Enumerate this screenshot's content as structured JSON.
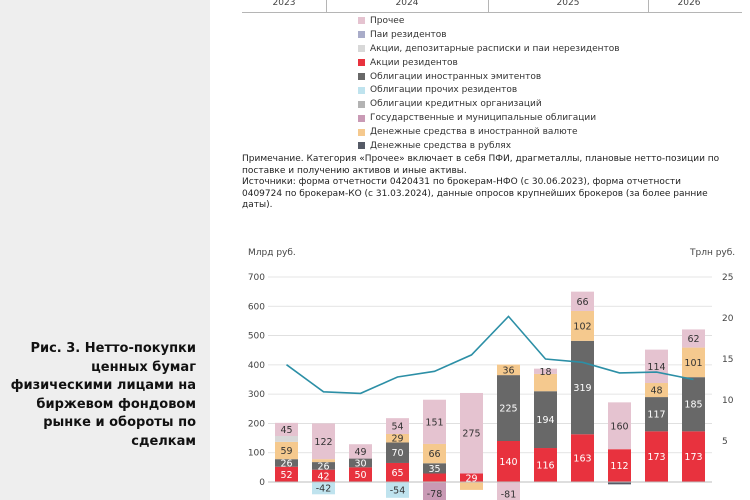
{
  "years": [
    "2023",
    "2024",
    "2025",
    "2026"
  ],
  "legend": [
    {
      "label": "Прочее",
      "color": "#e5c3d0"
    },
    {
      "label": "Паи резидентов",
      "color": "#a9acc9"
    },
    {
      "label": "Акции, депозитарные расписки и паи нерезидентов",
      "color": "#d8d8d8"
    },
    {
      "label": "Акции резидентов",
      "color": "#e8323e"
    },
    {
      "label": "Облигации иностранных эмитентов",
      "color": "#686868"
    },
    {
      "label": "Облигации прочих резидентов",
      "color": "#bfe3ee"
    },
    {
      "label": "Облигации кредитных организаций",
      "color": "#b3b3b3"
    },
    {
      "label": "Государственные и муниципальные облигации",
      "color": "#c99ab5"
    },
    {
      "label": "Денежные средства в иностранной валюте",
      "color": "#f5c98e"
    },
    {
      "label": "Денежные средства в рублях",
      "color": "#555a66"
    }
  ],
  "notes": {
    "note": "Примечание. Категория «Прочее» включает в себя ПФИ, драгметаллы, плановые нетто-позиции по поставке и получению активов и иные активы.",
    "sources": "Источники: форма отчетности 0420431 по брокерам-НФО (с 30.06.2023), форма отчетности 0409724 по брокерам-КО (с 31.03.2024), данные опросов крупнейших брокеров (за более ранние даты)."
  },
  "caption": "Рис. 3. Нетто-покупки ценных бумаг физическими лицами на биржевом фондовом рынке и обороты по сделкам",
  "chart_data": {
    "type": "bar",
    "left_unit": "Млрд руб.",
    "right_unit": "Трлн руб.",
    "left_ticks": [
      "700",
      "600",
      "500",
      "400",
      "300",
      "200",
      "100",
      "0"
    ],
    "right_ticks": [
      "25",
      "20",
      "15",
      "10",
      "5"
    ],
    "ylim_left": [
      -80,
      700
    ],
    "ylim_right": [
      -2.857,
      25
    ],
    "grid": true,
    "bars": [
      {
        "segments": [
          {
            "color": "#e8323e",
            "value": 52,
            "label": "52"
          },
          {
            "color": "#686868",
            "value": 26,
            "label": "26"
          },
          {
            "color": "#f5c98e",
            "value": 59,
            "label": "59"
          },
          {
            "color": "#d8d8d8",
            "value": 20,
            "label": ""
          },
          {
            "color": "#e5c3d0",
            "value": 45,
            "label": "45"
          }
        ]
      },
      {
        "segments": [
          {
            "color": "#e8323e",
            "value": 42,
            "label": "42"
          },
          {
            "color": "#686868",
            "value": 26,
            "label": "26"
          },
          {
            "color": "#f5c98e",
            "value": 10,
            "label": ""
          },
          {
            "color": "#e5c3d0",
            "value": 122,
            "label": "122"
          },
          {
            "color": "#bfe3ee",
            "value": -42,
            "label": "-42"
          }
        ]
      },
      {
        "segments": [
          {
            "color": "#e8323e",
            "value": 50,
            "label": "50"
          },
          {
            "color": "#686868",
            "value": 30,
            "label": "30"
          },
          {
            "color": "#e5c3d0",
            "value": 49,
            "label": "49"
          }
        ]
      },
      {
        "segments": [
          {
            "color": "#e8323e",
            "value": 65,
            "label": "65"
          },
          {
            "color": "#686868",
            "value": 70,
            "label": "70"
          },
          {
            "color": "#f5c98e",
            "value": 29,
            "label": "29"
          },
          {
            "color": "#e5c3d0",
            "value": 54,
            "label": "54"
          },
          {
            "color": "#bfe3ee",
            "value": -54,
            "label": "-54"
          }
        ]
      },
      {
        "segments": [
          {
            "color": "#e8323e",
            "value": 29,
            "label": ""
          },
          {
            "color": "#686868",
            "value": 35,
            "label": "35"
          },
          {
            "color": "#f5c98e",
            "value": 66,
            "label": "66"
          },
          {
            "color": "#e5c3d0",
            "value": 151,
            "label": "151"
          },
          {
            "color": "#c99ab5",
            "value": -78,
            "label": "-78"
          }
        ]
      },
      {
        "segments": [
          {
            "color": "#e8323e",
            "value": 29,
            "label": "29"
          },
          {
            "color": "#e5c3d0",
            "value": 275,
            "label": "275"
          },
          {
            "color": "#f5c98e",
            "value": -27,
            "label": ""
          }
        ]
      },
      {
        "segments": [
          {
            "color": "#e8323e",
            "value": 140,
            "label": "140"
          },
          {
            "color": "#686868",
            "value": 225,
            "label": "225"
          },
          {
            "color": "#f5c98e",
            "value": 36,
            "label": "36"
          },
          {
            "color": "#e5c3d0",
            "value": -81,
            "label": "-81"
          }
        ]
      },
      {
        "segments": [
          {
            "color": "#e8323e",
            "value": 116,
            "label": "116"
          },
          {
            "color": "#686868",
            "value": 194,
            "label": "194"
          },
          {
            "color": "#f5c98e",
            "value": 59,
            "label": ""
          },
          {
            "color": "#e5c3d0",
            "value": 18,
            "label": "18"
          }
        ]
      },
      {
        "segments": [
          {
            "color": "#e8323e",
            "value": 163,
            "label": "163"
          },
          {
            "color": "#686868",
            "value": 319,
            "label": "319"
          },
          {
            "color": "#f5c98e",
            "value": 102,
            "label": "102"
          },
          {
            "color": "#e5c3d0",
            "value": 66,
            "label": "66"
          }
        ]
      },
      {
        "segments": [
          {
            "color": "#e8323e",
            "value": 112,
            "label": "112"
          },
          {
            "color": "#e5c3d0",
            "value": 160,
            "label": "160"
          },
          {
            "color": "#555a66",
            "value": -8,
            "label": ""
          }
        ]
      },
      {
        "segments": [
          {
            "color": "#e8323e",
            "value": 173,
            "label": "173"
          },
          {
            "color": "#686868",
            "value": 117,
            "label": "117"
          },
          {
            "color": "#f5c98e",
            "value": 48,
            "label": "48"
          },
          {
            "color": "#e5c3d0",
            "value": 114,
            "label": "114"
          }
        ]
      },
      {
        "segments": [
          {
            "color": "#e8323e",
            "value": 173,
            "label": "173"
          },
          {
            "color": "#686868",
            "value": 185,
            "label": "185"
          },
          {
            "color": "#f5c98e",
            "value": 101,
            "label": "101"
          },
          {
            "color": "#e5c3d0",
            "value": 62,
            "label": "62"
          }
        ]
      }
    ],
    "turnover_line": {
      "color": "#2c8fa6",
      "values": [
        14.3,
        11.0,
        10.8,
        12.8,
        13.5,
        15.5,
        20.2,
        15.0,
        14.6,
        13.3,
        13.4,
        12.5
      ]
    }
  }
}
